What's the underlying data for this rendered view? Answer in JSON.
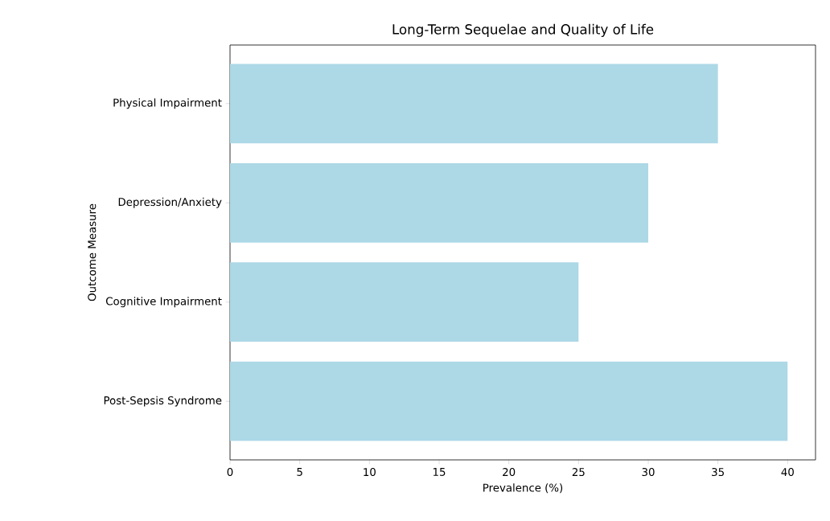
{
  "chart_data": {
    "type": "bar",
    "orientation": "horizontal",
    "title": "Long-Term Sequelae and Quality of Life",
    "xlabel": "Prevalence (%)",
    "ylabel": "Outcome Measure",
    "categories": [
      "Physical Impairment",
      "Depression/Anxiety",
      "Cognitive Impairment",
      "Post-Sepsis Syndrome"
    ],
    "values": [
      35,
      30,
      25,
      40
    ],
    "color": "#add8e6",
    "xlim": [
      0,
      42
    ],
    "xticks": [
      0,
      5,
      10,
      15,
      20,
      25,
      30,
      35,
      40
    ]
  }
}
